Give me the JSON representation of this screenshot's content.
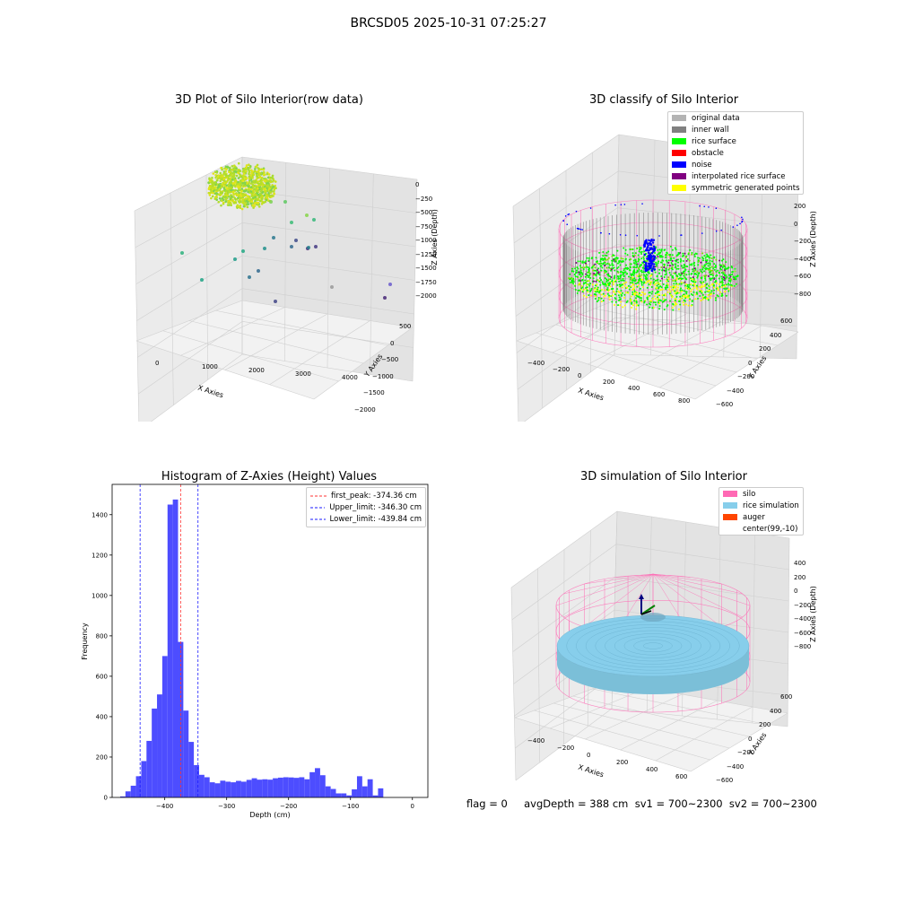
{
  "suptitle": "BRCSD05 2025-10-31 07:25:27",
  "colors": {
    "hist_bar": "#4d4dff",
    "first_peak": "#ff3333",
    "limits": "#1a1aff",
    "silo": "#ff69b4",
    "rice_sim": "#87ceeb",
    "auger": "#ff4500",
    "inner_wall": "#808080",
    "rice_surface": "#00ff00",
    "obstacle": "#ff0000",
    "noise": "#0000ff",
    "interp": "#800080",
    "symmetric": "#ffff00",
    "original": "#b3b3b3"
  },
  "plot1": {
    "title": "3D Plot of Silo Interior(row data)",
    "x_label": "X Axies",
    "y_label": "Y Axies",
    "z_label": "Z Axies (Depth)",
    "x_ticks": [
      "0",
      "1000",
      "2000",
      "3000",
      "4000"
    ],
    "y_ticks": [
      "500",
      "0",
      "−500",
      "−1000",
      "−1500",
      "−2000"
    ],
    "z_ticks": [
      "0",
      "−250",
      "−500",
      "−750",
      "−1000",
      "−1250",
      "−1500",
      "−1750",
      "−2000"
    ]
  },
  "plot2": {
    "title": "3D classify of Silo Interior",
    "x_label": "X Axies",
    "y_label": "Y Axies",
    "z_label": "Z Axies (Depth)",
    "x_ticks": [
      "−400",
      "−200",
      "0",
      "200",
      "400",
      "600",
      "800"
    ],
    "y_ticks": [
      "600",
      "400",
      "200",
      "0",
      "−200",
      "−400",
      "−600"
    ],
    "z_ticks": [
      "200",
      "0",
      "−200",
      "−400",
      "−600",
      "−800"
    ],
    "legend": [
      {
        "label": "original data",
        "color": "#b3b3b3"
      },
      {
        "label": "inner wall",
        "color": "#808080"
      },
      {
        "label": "rice surface",
        "color": "#00ff00"
      },
      {
        "label": "obstacle",
        "color": "#ff0000"
      },
      {
        "label": "noise",
        "color": "#0000ff"
      },
      {
        "label": "interpolated rice surface",
        "color": "#800080"
      },
      {
        "label": "symmetric generated points",
        "color": "#ffff00"
      }
    ]
  },
  "plot4": {
    "title": "3D simulation of Silo Interior",
    "x_label": "X Axies",
    "y_label": "Y Axies",
    "z_label": "Z Axies (Depth)",
    "x_ticks": [
      "−400",
      "−200",
      "0",
      "200",
      "400",
      "600"
    ],
    "y_ticks": [
      "600",
      "400",
      "200",
      "0",
      "−200",
      "−400",
      "−600"
    ],
    "z_ticks": [
      "400",
      "200",
      "0",
      "−200",
      "−400",
      "−600",
      "−800"
    ],
    "legend": [
      {
        "label": "silo",
        "color": "#ff69b4"
      },
      {
        "label": "rice simulation",
        "color": "#87ceeb"
      },
      {
        "label": "auger",
        "color": "#ff4500"
      },
      {
        "label": "center(99,-10)",
        "color": ""
      }
    ]
  },
  "status": {
    "text": "flag = 0     avgDepth = 388 cm  sv1 = 700~2300  sv2 = 700~2300"
  },
  "chart_data": [
    {
      "type": "scatter",
      "title": "3D Plot of Silo Interior(row data)",
      "xlabel": "X Axies",
      "ylabel": "Y Axies",
      "zlabel": "Z Axies (Depth)",
      "xlim": [
        -500,
        4500
      ],
      "ylim": [
        -2000,
        700
      ],
      "zlim": [
        -2100,
        100
      ]
    },
    {
      "type": "scatter",
      "title": "3D classify of Silo Interior",
      "xlabel": "X Axies",
      "ylabel": "Y Axies",
      "zlabel": "Z Axies (Depth)",
      "xlim": [
        -500,
        850
      ],
      "ylim": [
        -700,
        700
      ],
      "zlim": [
        -900,
        300
      ],
      "series": [
        {
          "name": "original data"
        },
        {
          "name": "inner wall"
        },
        {
          "name": "rice surface"
        },
        {
          "name": "obstacle"
        },
        {
          "name": "noise"
        },
        {
          "name": "interpolated rice surface"
        },
        {
          "name": "symmetric generated points"
        }
      ]
    },
    {
      "type": "bar",
      "title": "Histogram of Z-Axies (Height) Values",
      "xlabel": "Depth (cm)",
      "ylabel": "Frequency",
      "xlim": [
        -485,
        25
      ],
      "ylim": [
        0,
        1550
      ],
      "x_ticks": [
        -400,
        -300,
        -200,
        -100,
        0
      ],
      "y_ticks": [
        0,
        200,
        400,
        600,
        800,
        1000,
        1200,
        1400
      ],
      "bin_width": 8.5,
      "bin_start": -472,
      "values": [
        5,
        30,
        58,
        105,
        180,
        280,
        440,
        510,
        700,
        1450,
        1475,
        770,
        430,
        275,
        160,
        112,
        100,
        75,
        70,
        83,
        78,
        75,
        82,
        78,
        87,
        95,
        88,
        90,
        88,
        95,
        98,
        100,
        99,
        97,
        100,
        90,
        125,
        145,
        110,
        55,
        42,
        20,
        20,
        10,
        40,
        105,
        55,
        90,
        10,
        45
      ],
      "lines": [
        {
          "name": "first_peak: -374.36 cm",
          "x": -374.36,
          "color": "#ff3333"
        },
        {
          "name": "Upper_limit: -346.30 cm",
          "x": -346.3,
          "color": "#1a1aff"
        },
        {
          "name": "Lower_limit: -439.84 cm",
          "x": -439.84,
          "color": "#1a1aff"
        }
      ],
      "legend_position": "upper right"
    },
    {
      "type": "scatter",
      "title": "3D simulation of Silo Interior",
      "xlabel": "X Axies",
      "ylabel": "Y Axies",
      "zlabel": "Z Axies (Depth)",
      "xlim": [
        -500,
        700
      ],
      "ylim": [
        -700,
        700
      ],
      "zlim": [
        -900,
        450
      ],
      "series": [
        {
          "name": "silo"
        },
        {
          "name": "rice simulation"
        },
        {
          "name": "auger"
        },
        {
          "name": "center(99,-10)"
        }
      ]
    }
  ]
}
